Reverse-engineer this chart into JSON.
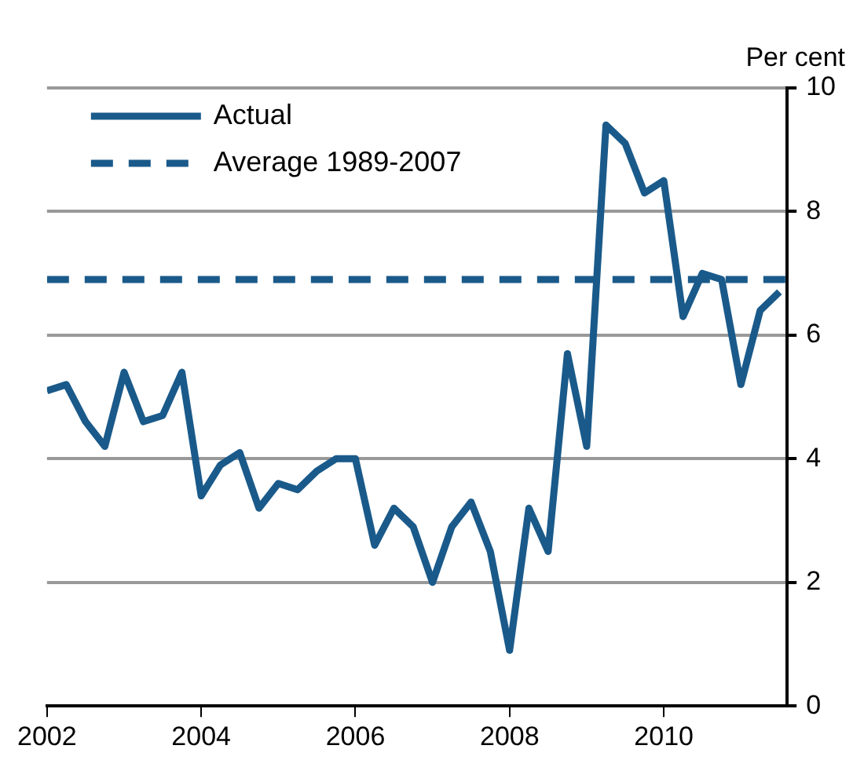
{
  "chart_data": {
    "type": "line",
    "ylabel": "Per cent",
    "xlim": [
      2002,
      2011.6
    ],
    "xticks": [
      2002,
      2004,
      2006,
      2008,
      2010
    ],
    "ylim": [
      0,
      10
    ],
    "yticks": [
      0,
      2,
      4,
      6,
      8,
      10
    ],
    "grid": "y",
    "legend": "top left",
    "marker": "none",
    "series": [
      {
        "name": "Actual",
        "color": "#1a5a8a",
        "line_style": "solid",
        "x": [
          2002,
          2002.25,
          2002.5,
          2002.75,
          2003,
          2003.25,
          2003.5,
          2003.75,
          2004,
          2004.25,
          2004.5,
          2004.75,
          2005,
          2005.25,
          2005.5,
          2005.75,
          2006,
          2006.25,
          2006.5,
          2006.75,
          2007,
          2007.25,
          2007.5,
          2007.75,
          2008,
          2008.25,
          2008.5,
          2008.75,
          2009,
          2009.25,
          2009.5,
          2009.75,
          2010,
          2010.25,
          2010.5,
          2010.75,
          2011,
          2011.25,
          2011.5
        ],
        "values": [
          5.1,
          5.2,
          4.6,
          4.2,
          5.4,
          4.6,
          4.7,
          5.4,
          3.4,
          3.9,
          4.1,
          3.2,
          3.6,
          3.5,
          3.8,
          4.0,
          4.0,
          2.6,
          3.2,
          2.9,
          2.0,
          2.9,
          3.3,
          2.5,
          0.9,
          3.2,
          2.5,
          5.7,
          4.2,
          9.4,
          9.1,
          8.3,
          8.5,
          6.3,
          7.0,
          6.9,
          5.2,
          6.4,
          6.7
        ]
      },
      {
        "name": "Average 1989-2007",
        "color": "#1a5a8a",
        "line_style": "dashed",
        "x": [
          2002,
          2011.6
        ],
        "values": [
          6.9,
          6.9
        ]
      }
    ]
  }
}
